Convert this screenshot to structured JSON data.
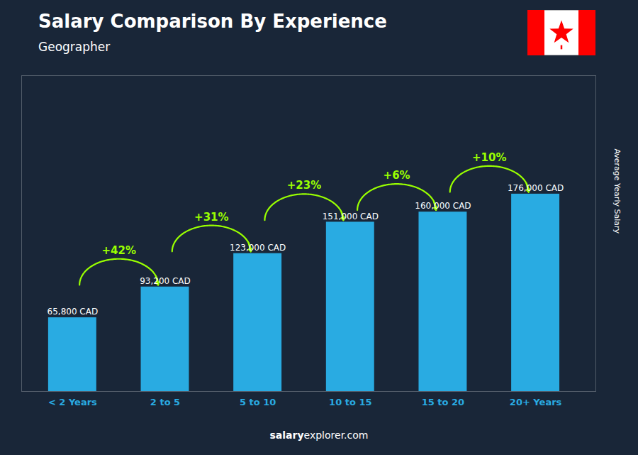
{
  "chart_data": {
    "type": "bar",
    "title": "Salary Comparison By Experience",
    "subtitle": "Geographer",
    "ylabel": "Average Yearly Salary",
    "footer": [
      "salary",
      "explorer.com"
    ],
    "categories": [
      "< 2 Years",
      "2 to 5",
      "5 to 10",
      "10 to 15",
      "15 to 20",
      "20+ Years"
    ],
    "values": [
      65800,
      93200,
      123000,
      151000,
      160000,
      176000
    ],
    "value_labels": [
      "65,800 CAD",
      "93,200 CAD",
      "123,000 CAD",
      "151,000 CAD",
      "160,000 CAD",
      "176,000 CAD"
    ],
    "data_labels": true,
    "annotations": [
      "+42%",
      "+31%",
      "+23%",
      "+6%",
      "+10%"
    ],
    "color": "#29ABE2",
    "ylim": [
      0,
      281600
    ],
    "yticks": [],
    "tick_labels": "x",
    "grid": false
  }
}
